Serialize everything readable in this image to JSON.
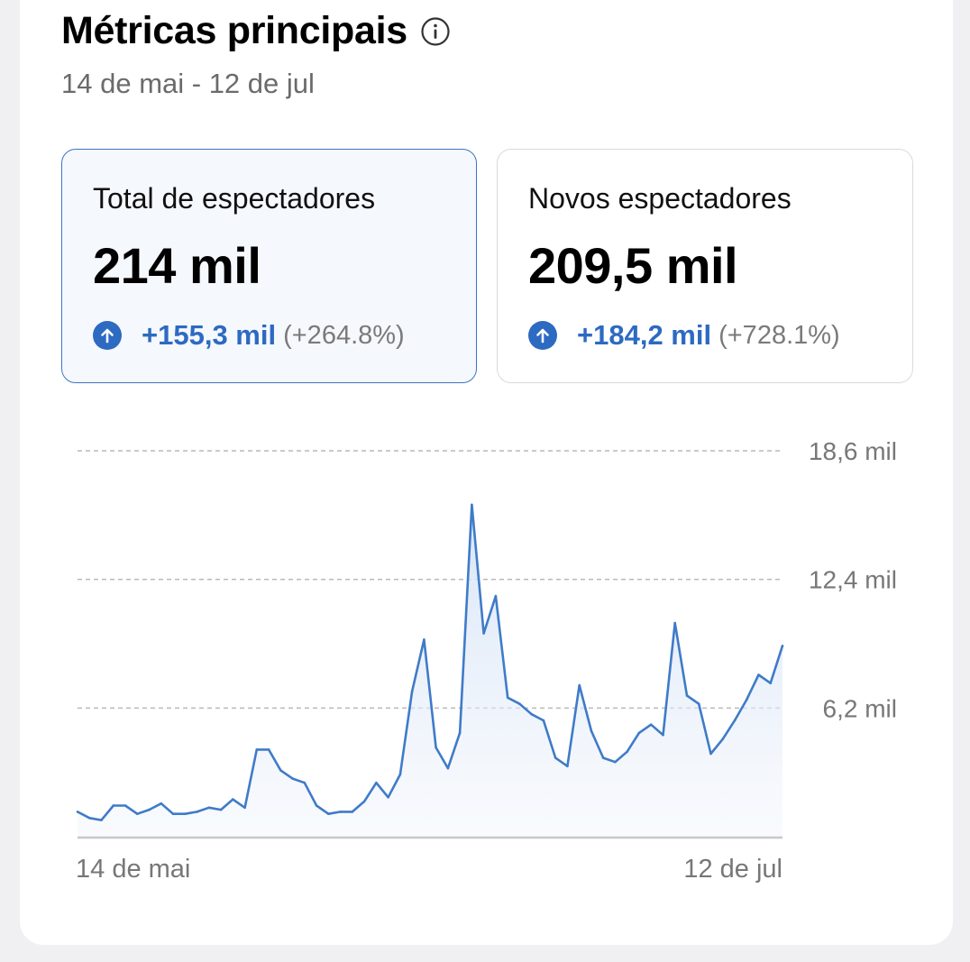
{
  "header": {
    "title": "Métricas principais",
    "date_range": "14 de mai - 12 de jul",
    "info_icon": "info-circle-icon"
  },
  "cards": [
    {
      "label": "Total de espectadores",
      "value": "214 mil",
      "change_abs": "+155,3 mil",
      "change_pct": "(+264.8%)",
      "selected": true,
      "icon": "arrow-up-circle-icon"
    },
    {
      "label": "Novos espectadores",
      "value": "209,5 mil",
      "change_abs": "+184,2 mil",
      "change_pct": "(+728.1%)",
      "selected": false,
      "icon": "arrow-up-circle-icon"
    }
  ],
  "colors": {
    "accent": "#2d6ac1",
    "line": "#3f7bc8",
    "selected_card_bg": "#f5f8fd",
    "selected_card_border": "#3f74c0"
  },
  "chart_data": {
    "type": "area",
    "x_start_label": "14 de mai",
    "x_end_label": "12 de jul",
    "y_tick_labels": [
      "18,6 mil",
      "12,4 mil",
      "6,2 mil"
    ],
    "y_ticks": [
      18600,
      12400,
      6200
    ],
    "ylim": [
      0,
      18600
    ],
    "grid": "dashed horizontal",
    "values": [
      1200,
      900,
      800,
      1500,
      1500,
      1100,
      1300,
      1600,
      1100,
      1100,
      1200,
      1400,
      1300,
      1800,
      1400,
      4200,
      4200,
      3200,
      2800,
      2600,
      1500,
      1100,
      1200,
      1200,
      1700,
      2600,
      1900,
      3000,
      7000,
      9500,
      4300,
      3300,
      5000,
      16000,
      9800,
      11600,
      6700,
      6400,
      5900,
      5600,
      3800,
      3400,
      7300,
      5100,
      3800,
      3600,
      4100,
      5000,
      5400,
      4900,
      10300,
      6800,
      6400,
      4000,
      4700,
      5600,
      6600,
      7800,
      7400,
      9200
    ]
  }
}
